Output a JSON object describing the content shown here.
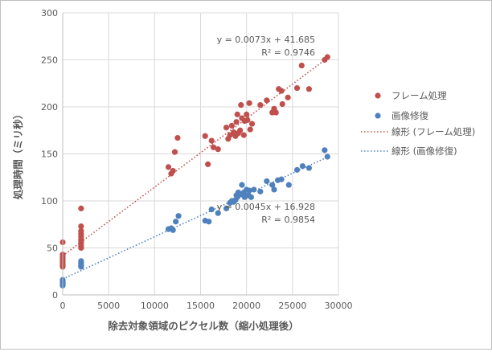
{
  "chart_data": {
    "type": "scatter",
    "title": "",
    "xlabel": "除去対象領域のピクセル数（縮小処理後）",
    "ylabel": "処理時間（ミリ秒）",
    "xlim": [
      0,
      30000
    ],
    "ylim": [
      0,
      300
    ],
    "x_ticks": [
      0,
      5000,
      10000,
      15000,
      20000,
      25000,
      30000
    ],
    "y_ticks": [
      0,
      50,
      100,
      150,
      200,
      250,
      300
    ],
    "grid": true,
    "legend_position": "right",
    "series": [
      {
        "name": "フレーム処理",
        "color": "#c0504d",
        "points": [
          [
            0,
            56
          ],
          [
            0,
            43
          ],
          [
            0,
            41
          ],
          [
            0,
            39
          ],
          [
            0,
            37
          ],
          [
            0,
            35
          ],
          [
            0,
            33
          ],
          [
            0,
            31
          ],
          [
            0,
            30
          ],
          [
            2000,
            92
          ],
          [
            2000,
            73
          ],
          [
            2000,
            68
          ],
          [
            2000,
            65
          ],
          [
            2000,
            62
          ],
          [
            2000,
            59
          ],
          [
            2000,
            57
          ],
          [
            2000,
            55
          ],
          [
            2000,
            52
          ],
          [
            2000,
            50
          ],
          [
            11500,
            136
          ],
          [
            11800,
            129
          ],
          [
            12000,
            132
          ],
          [
            12200,
            152
          ],
          [
            12500,
            167
          ],
          [
            15500,
            169
          ],
          [
            15800,
            139
          ],
          [
            16200,
            164
          ],
          [
            16400,
            157
          ],
          [
            16900,
            155
          ],
          [
            17800,
            178
          ],
          [
            18000,
            166
          ],
          [
            18200,
            170
          ],
          [
            18400,
            180
          ],
          [
            18600,
            173
          ],
          [
            18800,
            169
          ],
          [
            18900,
            184
          ],
          [
            19000,
            192
          ],
          [
            19100,
            172
          ],
          [
            19300,
            175
          ],
          [
            19400,
            202
          ],
          [
            19500,
            188
          ],
          [
            19700,
            170
          ],
          [
            19800,
            185
          ],
          [
            20000,
            192
          ],
          [
            20100,
            186
          ],
          [
            20300,
            204
          ],
          [
            20400,
            176
          ],
          [
            20600,
            182
          ],
          [
            21500,
            202
          ],
          [
            22200,
            207
          ],
          [
            22800,
            194
          ],
          [
            23000,
            198
          ],
          [
            23200,
            194
          ],
          [
            23500,
            219
          ],
          [
            23800,
            217
          ],
          [
            23900,
            203
          ],
          [
            24500,
            210
          ],
          [
            25500,
            220
          ],
          [
            26000,
            244
          ],
          [
            26800,
            219
          ],
          [
            28500,
            250
          ],
          [
            28800,
            253
          ]
        ],
        "trendline": {
          "label": "線形 (フレーム処理)",
          "slope": 0.0073,
          "intercept": 41.685,
          "equation": "y = 0.0073x + 41.685",
          "r2": "R² = 0.9746"
        }
      },
      {
        "name": "画像修復",
        "color": "#4f81bd",
        "points": [
          [
            0,
            16
          ],
          [
            0,
            15
          ],
          [
            0,
            13
          ],
          [
            0,
            12
          ],
          [
            0,
            11
          ],
          [
            0,
            10
          ],
          [
            2000,
            36
          ],
          [
            2000,
            34
          ],
          [
            2000,
            32
          ],
          [
            2000,
            31
          ],
          [
            2000,
            30
          ],
          [
            11500,
            70
          ],
          [
            11800,
            71
          ],
          [
            12000,
            69
          ],
          [
            12300,
            78
          ],
          [
            12600,
            84
          ],
          [
            15500,
            79
          ],
          [
            15900,
            78
          ],
          [
            16200,
            91
          ],
          [
            16900,
            87
          ],
          [
            17800,
            92
          ],
          [
            18200,
            98
          ],
          [
            18400,
            100
          ],
          [
            18600,
            99
          ],
          [
            18800,
            101
          ],
          [
            18900,
            106
          ],
          [
            19000,
            104
          ],
          [
            19100,
            109
          ],
          [
            19300,
            107
          ],
          [
            19500,
            117
          ],
          [
            19700,
            109
          ],
          [
            19800,
            104
          ],
          [
            20000,
            112
          ],
          [
            20200,
            106
          ],
          [
            20300,
            111
          ],
          [
            20500,
            104
          ],
          [
            20800,
            112
          ],
          [
            21500,
            110
          ],
          [
            22200,
            121
          ],
          [
            22800,
            117
          ],
          [
            23000,
            112
          ],
          [
            23400,
            122
          ],
          [
            23800,
            123
          ],
          [
            24600,
            117
          ],
          [
            25500,
            133
          ],
          [
            26100,
            137
          ],
          [
            26800,
            135
          ],
          [
            28500,
            154
          ],
          [
            28800,
            147
          ]
        ],
        "trendline": {
          "label": "線形 (画像修復)",
          "slope": 0.0045,
          "intercept": 16.928,
          "equation": "y = 0.0045x + 16.928",
          "r2": "R² = 0.9854"
        }
      }
    ]
  }
}
